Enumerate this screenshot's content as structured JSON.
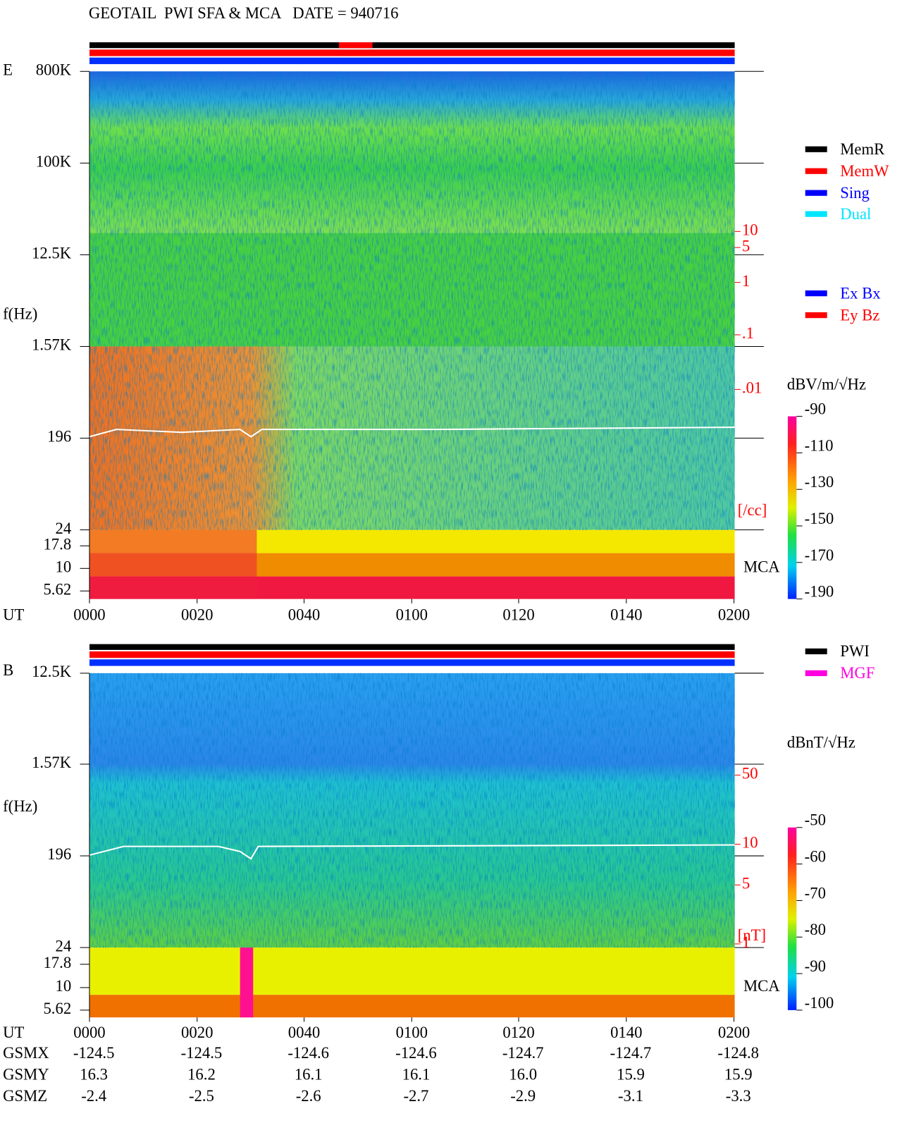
{
  "header": {
    "title": "GEOTAIL  PWI SFA & MCA   DATE = 940716"
  },
  "panel_e": {
    "label": "E",
    "y_axis_label": "f(Hz)",
    "freq_ticks": [
      "800K",
      "100K",
      "12.5K",
      "1.57K",
      "196",
      "24",
      "17.8",
      "10",
      "5.62"
    ],
    "density_ticks": [
      "10",
      "5",
      "1",
      ".1",
      ".01"
    ],
    "density_unit": "[/cc]",
    "mca": "MCA",
    "x_label": "UT",
    "x_ticks": [
      "0000",
      "0020",
      "0040",
      "0100",
      "0120",
      "0140",
      "0200"
    ],
    "colorbar": {
      "unit": "dBV/m/√Hz",
      "range": [
        -190,
        -90
      ],
      "ticks": [
        -90,
        -110,
        -130,
        -150,
        -170,
        -190
      ]
    },
    "legend": [
      {
        "label": "MemR",
        "color": "#000000"
      },
      {
        "label": "MemW",
        "color": "#ff0000"
      },
      {
        "label": "Sing",
        "color": "#0000ff"
      },
      {
        "label": "Dual",
        "color": "#00e5ff"
      },
      {
        "label": "Ex Bx",
        "color": "#0000ff"
      },
      {
        "label": "Ey Bz",
        "color": "#ff0000"
      }
    ]
  },
  "panel_b": {
    "label": "B",
    "y_axis_label": "f(Hz)",
    "freq_ticks": [
      "12.5K",
      "1.57K",
      "196",
      "24",
      "17.8",
      "10",
      "5.62"
    ],
    "field_ticks": [
      "50",
      "10",
      "5",
      "1"
    ],
    "field_unit": "[nT]",
    "mca": "MCA",
    "x_label": "UT",
    "x_ticks": [
      "0000",
      "0020",
      "0040",
      "0100",
      "0120",
      "0140",
      "0200"
    ],
    "colorbar": {
      "unit": "dBnT/√Hz",
      "range": [
        -100,
        -50
      ],
      "ticks": [
        -50,
        -60,
        -70,
        -80,
        -90,
        -100
      ]
    },
    "legend": [
      {
        "label": "PWI",
        "color": "#000000"
      },
      {
        "label": "MGF",
        "color": "#ff00e0"
      }
    ]
  },
  "orbit": {
    "rows": [
      {
        "label": "GSMX",
        "values": [
          "-124.5",
          "-124.5",
          "-124.6",
          "-124.6",
          "-124.7",
          "-124.7",
          "-124.8"
        ]
      },
      {
        "label": "GSMY",
        "values": [
          "16.3",
          "16.2",
          "16.1",
          "16.1",
          "16.0",
          "15.9",
          "15.9"
        ]
      },
      {
        "label": "GSMZ",
        "values": [
          "-2.4",
          "-2.5",
          "-2.6",
          "-2.7",
          "-2.9",
          "-3.1",
          "-3.3"
        ]
      }
    ]
  }
}
